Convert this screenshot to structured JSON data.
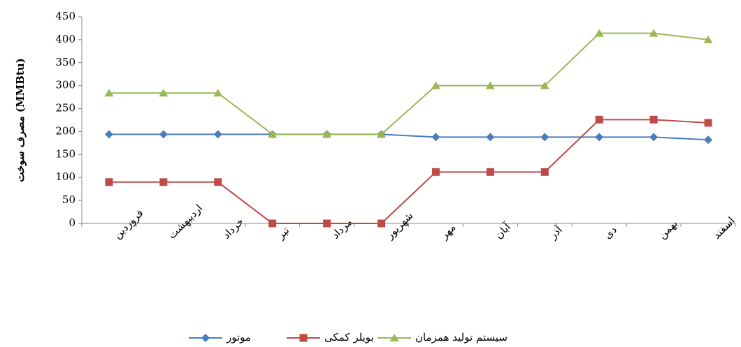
{
  "chart_data": {
    "type": "line",
    "y_label": "مصرف سوخت  (MMBtu)",
    "categories": [
      "فروردین",
      "اردیبهشت",
      "خرداد",
      "تیر",
      "مرداد",
      "شهریور",
      "مهر",
      "آبان",
      "آذر",
      "دی",
      "بهمن",
      "اسفند"
    ],
    "series": [
      {
        "name": "موتور",
        "color": "#4a7ebb",
        "marker": "diamond",
        "values": [
          194,
          194,
          194,
          194,
          194,
          194,
          188,
          188,
          188,
          188,
          188,
          182
        ]
      },
      {
        "name": "بویلر کمکی",
        "color": "#be4b48",
        "marker": "square",
        "values": [
          90,
          90,
          90,
          0,
          0,
          0,
          112,
          112,
          112,
          226,
          226,
          219
        ]
      },
      {
        "name": "سیستم تولید همزمان",
        "color": "#98b954",
        "marker": "triangle",
        "values": [
          284,
          284,
          284,
          194,
          194,
          194,
          300,
          300,
          300,
          414,
          414,
          400
        ]
      }
    ],
    "ylim": [
      0,
      450
    ],
    "yticks": [
      0,
      50,
      100,
      150,
      200,
      250,
      300,
      350,
      400,
      450
    ],
    "grid": false,
    "legend": "bottom"
  }
}
